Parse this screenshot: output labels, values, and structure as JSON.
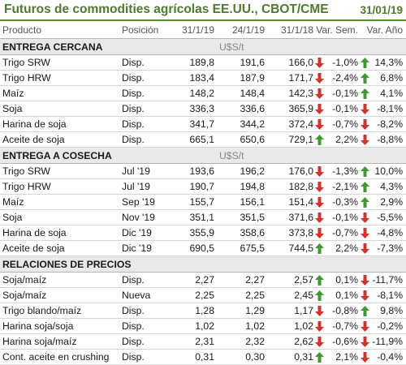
{
  "header": {
    "title": "Futuros de commodities agrícolas EE.UU., CBOT/CME",
    "date": "31/01/19"
  },
  "columns": [
    "Producto",
    "Posición",
    "31/1/19",
    "24/1/19",
    "31/1/18",
    "Var. Sem.",
    "Var. Año"
  ],
  "colors": {
    "accent": "#4e7a2a",
    "up": "#3d9a2f",
    "down": "#d9302a",
    "section_bg": "#e9e9e9"
  },
  "sections": [
    {
      "title": "ENTREGA CERCANA",
      "unit": "U$S/t",
      "rows": [
        {
          "name": "Trigo SRW",
          "pos": "Disp.",
          "v1": "189,8",
          "v2": "191,6",
          "v3": "166,0",
          "dir_year": "down",
          "sem": "-1,0%",
          "dir_sem": "up",
          "ano": "14,3%"
        },
        {
          "name": "Trigo HRW",
          "pos": "Disp.",
          "v1": "183,4",
          "v2": "187,9",
          "v3": "171,7",
          "dir_year": "down",
          "sem": "-2,4%",
          "dir_sem": "up",
          "ano": "6,8%"
        },
        {
          "name": "Maíz",
          "pos": "Disp.",
          "v1": "148,2",
          "v2": "148,4",
          "v3": "142,3",
          "dir_year": "down",
          "sem": "-0,1%",
          "dir_sem": "up",
          "ano": "4,1%"
        },
        {
          "name": "Soja",
          "pos": "Disp.",
          "v1": "336,3",
          "v2": "336,6",
          "v3": "365,9",
          "dir_year": "down",
          "sem": "-0,1%",
          "dir_sem": "down",
          "ano": "-8,1%"
        },
        {
          "name": "Harina de soja",
          "pos": "Disp.",
          "v1": "341,7",
          "v2": "344,2",
          "v3": "372,4",
          "dir_year": "down",
          "sem": "-0,7%",
          "dir_sem": "down",
          "ano": "-8,2%"
        },
        {
          "name": "Aceite de soja",
          "pos": "Disp.",
          "v1": "665,1",
          "v2": "650,6",
          "v3": "729,1",
          "dir_year": "up",
          "sem": "2,2%",
          "dir_sem": "down",
          "ano": "-8,8%"
        }
      ]
    },
    {
      "title": "ENTREGA A COSECHA",
      "unit": "U$S/t",
      "rows": [
        {
          "name": "Trigo SRW",
          "pos": "Jul '19",
          "v1": "193,6",
          "v2": "196,2",
          "v3": "176,0",
          "dir_year": "down",
          "sem": "-1,3%",
          "dir_sem": "up",
          "ano": "10,0%"
        },
        {
          "name": "Trigo HRW",
          "pos": "Jul '19",
          "v1": "190,7",
          "v2": "194,8",
          "v3": "182,8",
          "dir_year": "down",
          "sem": "-2,1%",
          "dir_sem": "up",
          "ano": "4,3%"
        },
        {
          "name": "Maíz",
          "pos": "Sep '19",
          "v1": "155,7",
          "v2": "156,1",
          "v3": "151,4",
          "dir_year": "down",
          "sem": "-0,3%",
          "dir_sem": "up",
          "ano": "2,9%"
        },
        {
          "name": "Soja",
          "pos": "Nov '19",
          "v1": "351,1",
          "v2": "351,5",
          "v3": "371,6",
          "dir_year": "down",
          "sem": "-0,1%",
          "dir_sem": "down",
          "ano": "-5,5%"
        },
        {
          "name": "Harina de soja",
          "pos": "Dic '19",
          "v1": "355,9",
          "v2": "358,6",
          "v3": "373,8",
          "dir_year": "down",
          "sem": "-0,7%",
          "dir_sem": "down",
          "ano": "-4,8%"
        },
        {
          "name": "Aceite de soja",
          "pos": "Dic '19",
          "v1": "690,5",
          "v2": "675,5",
          "v3": "744,5",
          "dir_year": "up",
          "sem": "2,2%",
          "dir_sem": "down",
          "ano": "-7,3%"
        }
      ]
    },
    {
      "title": "RELACIONES DE PRECIOS",
      "unit": "",
      "rows": [
        {
          "name": "Soja/maíz",
          "pos": "Disp.",
          "v1": "2,27",
          "v2": "2,27",
          "v3": "2,57",
          "dir_year": "up",
          "sem": "0,1%",
          "dir_sem": "down",
          "ano": "-11,7%"
        },
        {
          "name": "Soja/maíz",
          "pos": "Nueva",
          "v1": "2,25",
          "v2": "2,25",
          "v3": "2,45",
          "dir_year": "up",
          "sem": "0,1%",
          "dir_sem": "down",
          "ano": "-8,1%"
        },
        {
          "name": "Trigo blando/maíz",
          "pos": "Disp.",
          "v1": "1,28",
          "v2": "1,29",
          "v3": "1,17",
          "dir_year": "down",
          "sem": "-0,8%",
          "dir_sem": "up",
          "ano": "9,8%"
        },
        {
          "name": "Harina soja/soja",
          "pos": "Disp.",
          "v1": "1,02",
          "v2": "1,02",
          "v3": "1,02",
          "dir_year": "down",
          "sem": "-0,7%",
          "dir_sem": "down",
          "ano": "-0,2%"
        },
        {
          "name": "Harina soja/maíz",
          "pos": "Disp.",
          "v1": "2,31",
          "v2": "2,32",
          "v3": "2,62",
          "dir_year": "down",
          "sem": "-0,6%",
          "dir_sem": "down",
          "ano": "-11,9%"
        },
        {
          "name": "Cont. aceite en crushing",
          "pos": "Disp.",
          "v1": "0,31",
          "v2": "0,30",
          "v3": "0,31",
          "dir_year": "up",
          "sem": "2,1%",
          "dir_sem": "down",
          "ano": "-0,4%"
        }
      ]
    }
  ]
}
